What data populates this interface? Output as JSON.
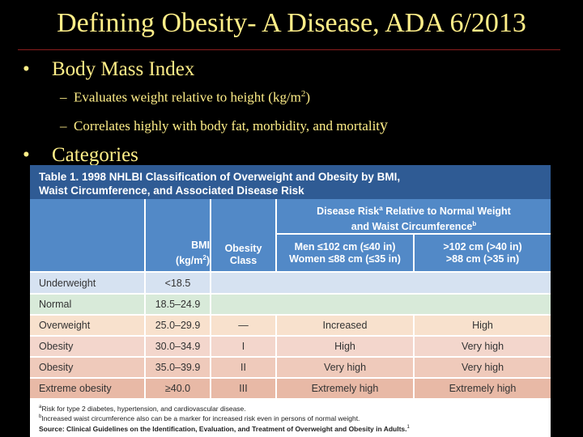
{
  "slide": {
    "title": "Defining Obesity- A Disease, ADA 6/2013",
    "bullet_symbol": "•",
    "bullet1": "Body Mass Index",
    "sub_dash": "–",
    "sub1_pre": "Evaluates weight relative to height (kg/m",
    "sub1_sup": "2",
    "sub1_post": ")",
    "sub2_main": "Correlates highly with body fat, morbidity, and mortalit",
    "sub2_last": "y",
    "bullet2": "Categories"
  },
  "table": {
    "caption_line1": "Table 1. 1998 NHLBI Classification of Overweight and Obesity by BMI,",
    "caption_line2": "Waist Circumference, and Associated Disease Risk",
    "group_header_line1": "Disease Risk",
    "group_header_sup": "a",
    "group_header_line1_rest": " Relative to Normal Weight",
    "group_header_line2": "and Waist Circumference",
    "group_header_sup2": "b",
    "col_bmi_line1": "BMI",
    "col_bmi_line2": "(kg/m",
    "col_bmi_sup": "2",
    "col_bmi_close": ")",
    "col_class_line1": "Obesity",
    "col_class_line2": "Class",
    "col_men_line1": "Men ≤102 cm (≤40 in)",
    "col_men_line2": "Women ≤88 cm (≤35 in)",
    "col_over_line1": ">102 cm (>40 in)",
    "col_over_line2": ">88 cm (>35 in)",
    "rows": [
      {
        "label": "Underweight",
        "bmi": "<18.5",
        "cls": "",
        "risk1": "",
        "risk2": ""
      },
      {
        "label": "Normal",
        "bmi": "18.5–24.9",
        "cls": "",
        "risk1": "",
        "risk2": ""
      },
      {
        "label": "Overweight",
        "bmi": "25.0–29.9",
        "cls": "—",
        "risk1": "Increased",
        "risk2": "High"
      },
      {
        "label": "Obesity",
        "bmi": "30.0–34.9",
        "cls": "I",
        "risk1": "High",
        "risk2": "Very high"
      },
      {
        "label": "Obesity",
        "bmi": "35.0–39.9",
        "cls": "II",
        "risk1": "Very high",
        "risk2": "Very high"
      },
      {
        "label": "Extreme obesity",
        "bmi": "≥40.0",
        "cls": "III",
        "risk1": "Extremely high",
        "risk2": "Extremely high"
      }
    ],
    "foot_a_sup": "a",
    "foot_a": "Risk for type 2 diabetes, hypertension, and cardiovascular disease.",
    "foot_b_sup": "b",
    "foot_b": "Increased waist circumference also can be a marker for increased risk even in persons of normal weight.",
    "foot_source_label": "Source:",
    "foot_source": " Clinical Guidelines on the Identification, Evaluation, and Treatment of Overweight and Obesity in Adults.",
    "foot_source_sup": "1"
  },
  "colors": {
    "background": "#000000",
    "title_text": "#FFEE88",
    "header_blue": "#5289C7",
    "caption_blue": "#2F5B94"
  }
}
